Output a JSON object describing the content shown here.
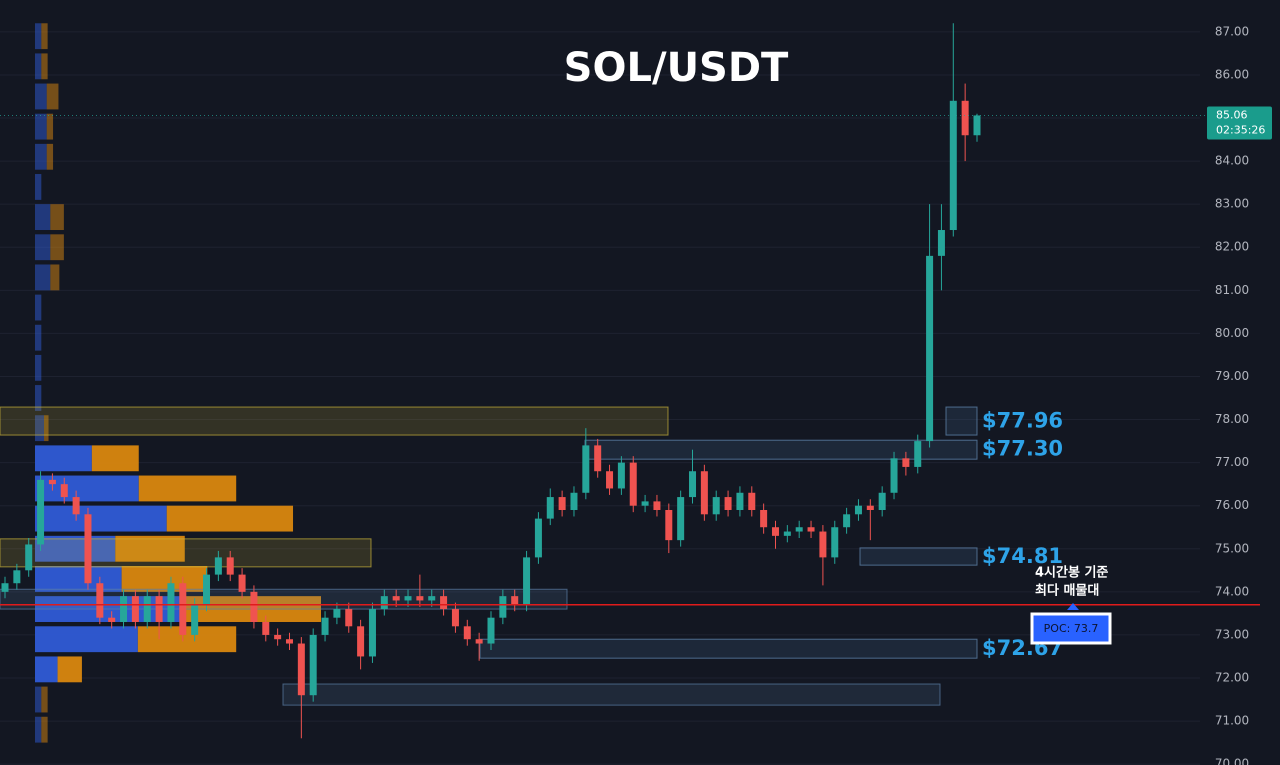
{
  "chart_data": {
    "type": "candlestick",
    "title": "SOL/USDT",
    "open": [
      74.0,
      74.2,
      74.5,
      75.1,
      76.6,
      76.5,
      76.2,
      75.8,
      74.2,
      73.4,
      73.3,
      73.9,
      73.3,
      73.9,
      73.3,
      74.2,
      73.0,
      73.7,
      74.4,
      74.8,
      74.4,
      74.0,
      73.3,
      73.0,
      72.9,
      72.8,
      71.6,
      73.0,
      73.4,
      73.6,
      73.2,
      72.5,
      73.6,
      73.9,
      73.8,
      73.9,
      73.8,
      73.9,
      73.6,
      73.2,
      72.9,
      72.8,
      73.4,
      73.9,
      73.7,
      74.8,
      75.7,
      76.2,
      75.9,
      76.3,
      77.4,
      76.8,
      76.4,
      77.0,
      76.0,
      76.1,
      75.9,
      75.2,
      76.2,
      76.8,
      75.8,
      76.2,
      75.9,
      76.3,
      75.9,
      75.5,
      75.3,
      75.4,
      75.5,
      75.4,
      74.8,
      75.5,
      75.8,
      76.0,
      75.9,
      76.3,
      77.1,
      76.9,
      77.5,
      81.8,
      82.4,
      85.4,
      84.6
    ],
    "high": [
      74.35,
      74.65,
      75.25,
      76.8,
      76.75,
      76.65,
      76.35,
      75.95,
      74.35,
      73.55,
      74.05,
      74.05,
      74.05,
      74.05,
      74.35,
      74.35,
      73.85,
      74.55,
      74.95,
      74.95,
      74.55,
      74.15,
      73.45,
      73.15,
      73.05,
      72.95,
      73.15,
      73.55,
      73.75,
      73.75,
      73.35,
      73.75,
      74.05,
      74.05,
      74.05,
      74.4,
      74.05,
      74.05,
      73.75,
      73.35,
      73.05,
      73.55,
      74.05,
      74.05,
      74.95,
      75.85,
      76.4,
      76.35,
      76.45,
      77.8,
      77.55,
      76.95,
      77.15,
      77.15,
      76.25,
      76.25,
      76.05,
      76.35,
      77.3,
      76.95,
      76.35,
      76.35,
      76.45,
      76.45,
      76.05,
      75.65,
      75.55,
      75.65,
      75.65,
      75.55,
      75.65,
      75.95,
      76.15,
      76.15,
      76.45,
      77.25,
      77.25,
      77.65,
      83.0,
      83.0,
      87.2,
      85.8,
      85.1
    ],
    "low": [
      73.85,
      74.05,
      74.35,
      74.95,
      76.35,
      76.05,
      75.65,
      74.05,
      73.25,
      73.15,
      73.15,
      73.15,
      73.15,
      72.9,
      73.15,
      72.85,
      72.85,
      73.55,
      74.25,
      74.25,
      73.85,
      73.15,
      72.85,
      72.75,
      72.65,
      70.6,
      71.45,
      72.85,
      73.25,
      73.05,
      72.2,
      72.35,
      73.45,
      73.65,
      73.65,
      73.65,
      73.65,
      73.45,
      73.05,
      72.75,
      72.4,
      72.65,
      73.25,
      73.55,
      73.55,
      74.65,
      75.55,
      75.75,
      75.75,
      76.15,
      76.65,
      76.25,
      76.25,
      75.85,
      75.85,
      75.75,
      74.9,
      75.05,
      76.05,
      75.65,
      75.65,
      75.75,
      75.75,
      75.75,
      75.35,
      75.0,
      75.15,
      75.25,
      75.25,
      74.15,
      74.65,
      75.35,
      75.65,
      75.2,
      75.75,
      76.15,
      76.7,
      76.75,
      77.35,
      81.0,
      82.25,
      84.0,
      84.45
    ],
    "close": [
      74.2,
      74.5,
      75.1,
      76.6,
      76.5,
      76.2,
      75.8,
      74.2,
      73.4,
      73.3,
      73.9,
      73.3,
      73.9,
      73.3,
      74.2,
      73.0,
      73.7,
      74.4,
      74.8,
      74.4,
      74.0,
      73.3,
      73.0,
      72.9,
      72.8,
      71.6,
      73.0,
      73.4,
      73.6,
      73.2,
      72.5,
      73.6,
      73.9,
      73.8,
      73.9,
      73.8,
      73.9,
      73.6,
      73.2,
      72.9,
      72.8,
      73.4,
      73.9,
      73.7,
      74.8,
      75.7,
      76.2,
      75.9,
      76.3,
      77.4,
      76.8,
      76.4,
      77.0,
      76.0,
      76.1,
      75.9,
      75.2,
      76.2,
      76.8,
      75.8,
      76.2,
      75.9,
      76.3,
      75.9,
      75.5,
      75.3,
      75.4,
      75.5,
      75.4,
      74.8,
      75.5,
      75.8,
      76.0,
      75.9,
      76.3,
      77.1,
      76.9,
      77.5,
      81.8,
      82.4,
      85.4,
      84.6,
      85.06
    ],
    "up_color": "#26a69a",
    "down_color": "#ef5350",
    "ylim": [
      69.98,
      87.74
    ],
    "yticks": [
      {
        "value": 70,
        "label": "70.00"
      },
      {
        "value": 71,
        "label": "71.00"
      },
      {
        "value": 72,
        "label": "72.00"
      },
      {
        "value": 73,
        "label": "73.00"
      },
      {
        "value": 74,
        "label": "74.00"
      },
      {
        "value": 75,
        "label": "75.00"
      },
      {
        "value": 76,
        "label": "76.00"
      },
      {
        "value": 77,
        "label": "77.00"
      },
      {
        "value": 78,
        "label": "78.00"
      },
      {
        "value": 79,
        "label": "79.00"
      },
      {
        "value": 80,
        "label": "80.00"
      },
      {
        "value": 81,
        "label": "81.00"
      },
      {
        "value": 82,
        "label": "82.00"
      },
      {
        "value": 83,
        "label": "83.00"
      },
      {
        "value": 84,
        "label": "84.00"
      },
      {
        "value": 85,
        "label": "85.00"
      },
      {
        "value": 86,
        "label": "86.00"
      },
      {
        "value": 87,
        "label": "87.00"
      }
    ],
    "grid": true,
    "last_price": {
      "value": 85.06,
      "label": "85.06"
    },
    "countdown": "02:35:26",
    "poc": {
      "value": 73.7,
      "label": "POC: 73.7",
      "note": [
        "4시간봉 기준",
        "최다 매물대"
      ]
    },
    "levels": [
      {
        "value": 77.96,
        "label": "$77.96",
        "low": 77.64,
        "high": 78.29
      },
      {
        "value": 77.3,
        "label": "$77.30",
        "low": 77.08,
        "high": 77.52
      },
      {
        "value": 74.81,
        "label": "$74.81",
        "low": 74.62,
        "high": 75.02
      },
      {
        "value": 72.67,
        "label": "$72.67",
        "low": 72.46,
        "high": 72.9
      }
    ],
    "zones": [
      {
        "low": 77.64,
        "high": 78.29,
        "color": "#c9b23a"
      },
      {
        "low": 74.58,
        "high": 75.23,
        "color": "#c9b23a"
      },
      {
        "low": 73.6,
        "high": 74.06,
        "color": "#5b7fa6"
      },
      {
        "low": 71.37,
        "high": 71.86,
        "color": "#5b7fa6"
      }
    ],
    "volume_profile": {
      "levels": [
        86.9,
        86.2,
        85.5,
        84.8,
        84.1,
        83.4,
        82.7,
        82.0,
        81.3,
        80.6,
        79.9,
        79.2,
        78.5,
        77.8,
        77.1,
        76.4,
        75.7,
        75.0,
        74.3,
        73.6,
        72.9,
        72.2,
        71.5,
        70.8
      ],
      "buy": [
        7,
        7,
        13,
        13,
        13,
        7,
        17,
        17,
        17,
        7,
        7,
        7,
        7,
        10,
        63,
        115,
        146,
        89,
        96,
        161,
        114,
        25,
        7,
        7
      ],
      "sell": [
        7,
        7,
        13,
        7,
        7,
        0,
        15,
        15,
        10,
        0,
        0,
        0,
        0,
        5,
        52,
        108,
        140,
        77,
        95,
        156,
        109,
        27,
        7,
        7
      ],
      "buy_color": "#2f5bd6",
      "sell_color": "#d9870f"
    }
  }
}
